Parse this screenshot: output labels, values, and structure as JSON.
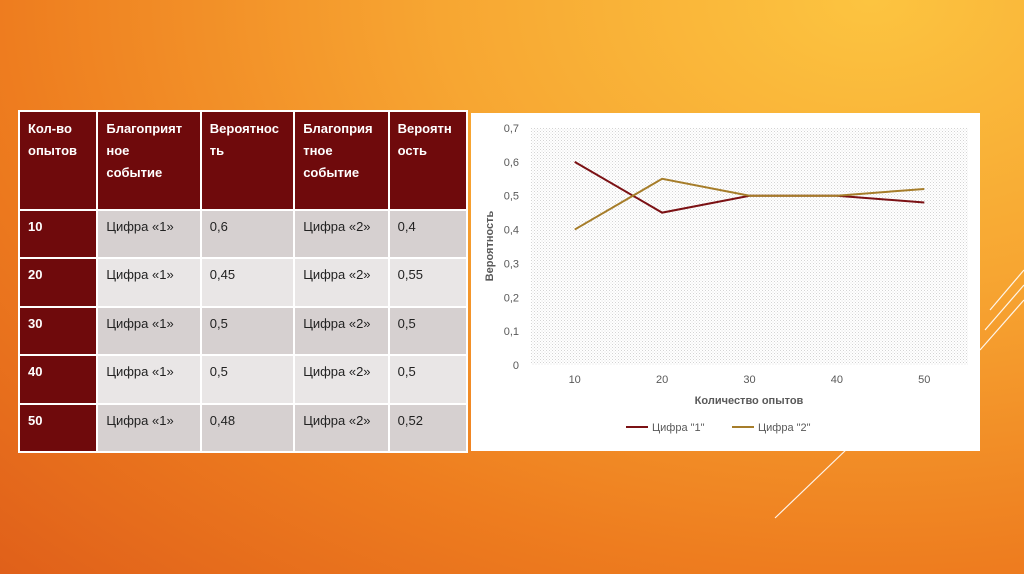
{
  "table": {
    "headers": [
      "Кол-во опытов",
      "Благоприятное событие",
      "Вероятность",
      "Благоприятное событие",
      "Вероятность"
    ],
    "header_lines": [
      [
        "Кол-во",
        "опытов"
      ],
      [
        "Благоприят",
        "ное",
        "событие"
      ],
      [
        "Вероятнос",
        "ть"
      ],
      [
        "Благоприя",
        "тное",
        "событие"
      ],
      [
        "Вероятн",
        "ость"
      ]
    ],
    "rows": [
      [
        "10",
        "Цифра «1»",
        "0,6",
        "Цифра «2»",
        "0,4"
      ],
      [
        "20",
        "Цифра «1»",
        "0,45",
        "Цифра «2»",
        "0,55"
      ],
      [
        "30",
        "Цифра «1»",
        "0,5",
        "Цифра «2»",
        "0,5"
      ],
      [
        "40",
        "Цифра «1»",
        "0,5",
        "Цифра «2»",
        "0,5"
      ],
      [
        "50",
        "Цифра «1»",
        "0,48",
        "Цифра «2»",
        "0,52"
      ]
    ]
  },
  "chart_data": {
    "type": "line",
    "categories": [
      "10",
      "20",
      "30",
      "40",
      "50"
    ],
    "series": [
      {
        "name": "Цифра \"1\"",
        "values": [
          0.6,
          0.45,
          0.5,
          0.5,
          0.48
        ],
        "color": "#7b1114"
      },
      {
        "name": "Цифра \"2\"",
        "values": [
          0.4,
          0.55,
          0.5,
          0.5,
          0.52
        ],
        "color": "#a67d2a"
      }
    ],
    "xlabel": "Количество опытов",
    "ylabel": "Вероятность",
    "ylim": [
      0,
      0.7
    ],
    "yticks": [
      "0",
      "0,1",
      "0,2",
      "0,3",
      "0,4",
      "0,5",
      "0,6",
      "0,7"
    ],
    "legend": "bottom"
  }
}
